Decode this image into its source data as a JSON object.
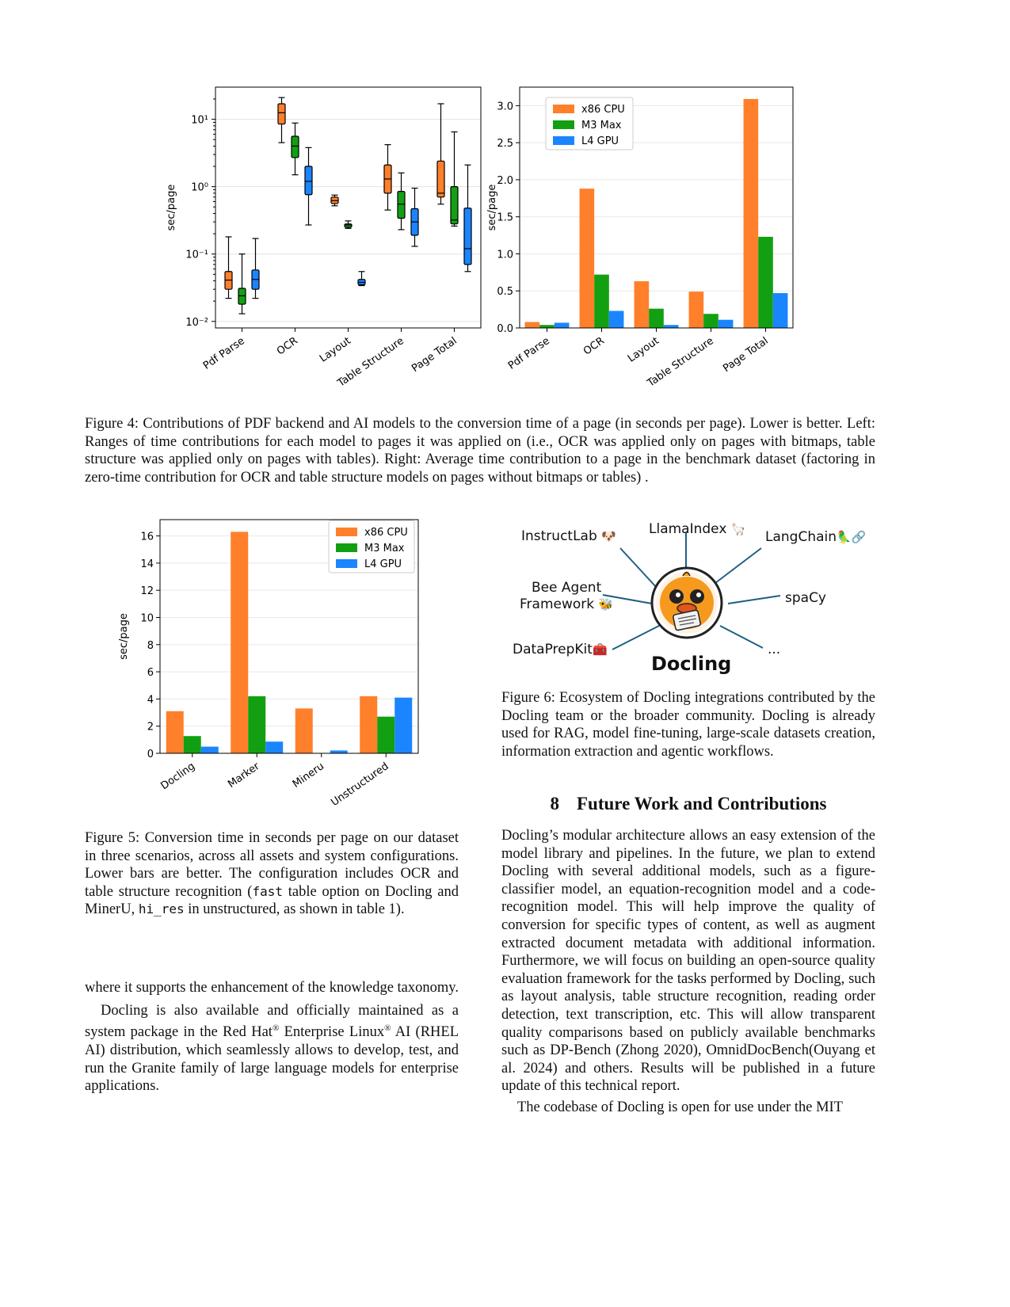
{
  "figure4": {
    "caption": "Figure 4: Contributions of PDF backend and AI models to the conversion time of a page (in seconds per page). Lower is better. Left: Ranges of time contributions for each model to pages it was applied on (i.e., OCR was applied only on pages with bitmaps, table structure was applied only on pages with tables). Right: Average time contribution to a page in the benchmark dataset (factoring in zero-time contribution for OCR and table structure models on pages without bitmaps or tables) ."
  },
  "figure5": {
    "caption_pre": "Figure 5: Conversion time in seconds per page on our dataset in three scenarios, across all assets and system configurations. Lower bars are better. The configuration includes OCR and table structure recognition (",
    "caption_code1": "fast",
    "caption_mid": " table option on Docling and MinerU, ",
    "caption_code2": "hi_res",
    "caption_post": " in unstructured, as shown in table 1)."
  },
  "figure6": {
    "caption": "Figure 6: Ecosystem of Docling integrations contributed by the Docling team or the broader community. Docling is already used for RAG, model fine-tuning, large-scale datasets creation, information extraction and agentic workflows.",
    "center_label": "Docling",
    "integrations": [
      "InstructLab",
      "LlamaIndex",
      "LangChain",
      "Bee Agent",
      "Framework",
      "spaCy",
      "DataPrepKit",
      "..."
    ]
  },
  "left_column": {
    "para1": "where it supports the enhancement of the knowledge taxonomy.",
    "para2_a": "Docling is also available and officially maintained as a system package in the Red Hat",
    "para2_reg": "®",
    "para2_b": " Enterprise Linux",
    "para2_c": " AI (RHEL AI) distribution, which seamlessly allows to develop, test, and run the Granite family of large language models for enterprise applications."
  },
  "section8": {
    "number": "8",
    "title": "Future Work and Contributions",
    "para1": "Docling’s modular architecture allows an easy extension of the model library and pipelines. In the future, we plan to extend Docling with several additional models, such as a figure-classifier model, an equation-recognition model and a code-recognition model. This will help improve the quality of conversion for specific types of content, as well as augment extracted document metadata with additional information. Furthermore, we will focus on building an open-source quality evaluation framework for the tasks performed by Docling, such as layout analysis, table structure recognition, reading order detection, text transcription, etc. This will allow transparent quality comparisons based on publicly available benchmarks such as DP-Bench (Zhong 2020), OmnidDocBench(Ouyang et al. 2024) and others. Results will be published in a future update of this technical report.",
    "para2": "The codebase of Docling is open for use under the MIT"
  },
  "colors": {
    "cpu": "#ff7f2a",
    "m3": "#12a012",
    "gpu": "#1a85ff"
  },
  "chart_data": [
    {
      "type": "box",
      "scale": "log",
      "ylabel": "sec/page",
      "categories": [
        "Pdf Parse",
        "OCR",
        "Layout",
        "Table Structure",
        "Page Total"
      ],
      "ytick_labels": [
        "10⁻²",
        "10⁻¹",
        "10⁰",
        "10¹"
      ],
      "ytick_values": [
        0.01,
        0.1,
        1,
        10
      ],
      "ylim": [
        0.008,
        30
      ],
      "series": [
        {
          "name": "x86 CPU",
          "boxes": [
            {
              "min": 0.022,
              "q1": 0.03,
              "med": 0.041,
              "q3": 0.055,
              "max": 0.18
            },
            {
              "min": 4.5,
              "q1": 8.5,
              "med": 12.5,
              "q3": 17,
              "max": 21
            },
            {
              "min": 0.52,
              "q1": 0.56,
              "med": 0.62,
              "q3": 0.7,
              "max": 0.75
            },
            {
              "min": 0.45,
              "q1": 0.8,
              "med": 1.3,
              "q3": 2.1,
              "max": 4.2
            },
            {
              "min": 0.55,
              "q1": 0.7,
              "med": 0.8,
              "q3": 2.4,
              "max": 17
            }
          ]
        },
        {
          "name": "M3 Max",
          "boxes": [
            {
              "min": 0.013,
              "q1": 0.018,
              "med": 0.024,
              "q3": 0.031,
              "max": 0.1
            },
            {
              "min": 1.5,
              "q1": 2.7,
              "med": 4.0,
              "q3": 5.6,
              "max": 8.8
            },
            {
              "min": 0.24,
              "q1": 0.25,
              "med": 0.27,
              "q3": 0.28,
              "max": 0.31
            },
            {
              "min": 0.23,
              "q1": 0.34,
              "med": 0.55,
              "q3": 0.85,
              "max": 1.6
            },
            {
              "min": 0.26,
              "q1": 0.28,
              "med": 0.32,
              "q3": 1.0,
              "max": 6.5
            }
          ]
        },
        {
          "name": "L4 GPU",
          "boxes": [
            {
              "min": 0.022,
              "q1": 0.03,
              "med": 0.042,
              "q3": 0.058,
              "max": 0.17
            },
            {
              "min": 0.27,
              "q1": 0.76,
              "med": 1.2,
              "q3": 2.0,
              "max": 3.8
            },
            {
              "min": 0.034,
              "q1": 0.035,
              "med": 0.038,
              "q3": 0.042,
              "max": 0.055
            },
            {
              "min": 0.13,
              "q1": 0.19,
              "med": 0.3,
              "q3": 0.47,
              "max": 0.95
            },
            {
              "min": 0.055,
              "q1": 0.07,
              "med": 0.12,
              "q3": 0.48,
              "max": 2.1
            }
          ]
        }
      ]
    },
    {
      "type": "bar",
      "ylabel": "sec/page",
      "categories": [
        "Pdf Parse",
        "OCR",
        "Layout",
        "Table Structure",
        "Page Total"
      ],
      "ylim": [
        0,
        3.25
      ],
      "yticks": [
        0.0,
        0.5,
        1.0,
        1.5,
        2.0,
        2.5,
        3.0
      ],
      "legend": "top-left",
      "series": [
        {
          "name": "x86 CPU",
          "values": [
            0.08,
            1.88,
            0.63,
            0.49,
            3.09
          ]
        },
        {
          "name": "M3 Max",
          "values": [
            0.04,
            0.72,
            0.26,
            0.19,
            1.23
          ]
        },
        {
          "name": "L4 GPU",
          "values": [
            0.07,
            0.23,
            0.04,
            0.11,
            0.47
          ]
        }
      ]
    },
    {
      "type": "bar",
      "ylabel": "sec/page",
      "categories": [
        "Docling",
        "Marker",
        "Mineru",
        "Unstructured"
      ],
      "ylim": [
        0,
        17.2
      ],
      "yticks": [
        0,
        2,
        4,
        6,
        8,
        10,
        12,
        14,
        16
      ],
      "legend": "top-right",
      "series": [
        {
          "name": "x86 CPU",
          "values": [
            3.1,
            16.3,
            3.3,
            4.2
          ]
        },
        {
          "name": "M3 Max",
          "values": [
            1.27,
            4.2,
            null,
            2.7
          ]
        },
        {
          "name": "L4 GPU",
          "values": [
            0.49,
            0.86,
            0.21,
            4.1
          ]
        }
      ]
    }
  ]
}
